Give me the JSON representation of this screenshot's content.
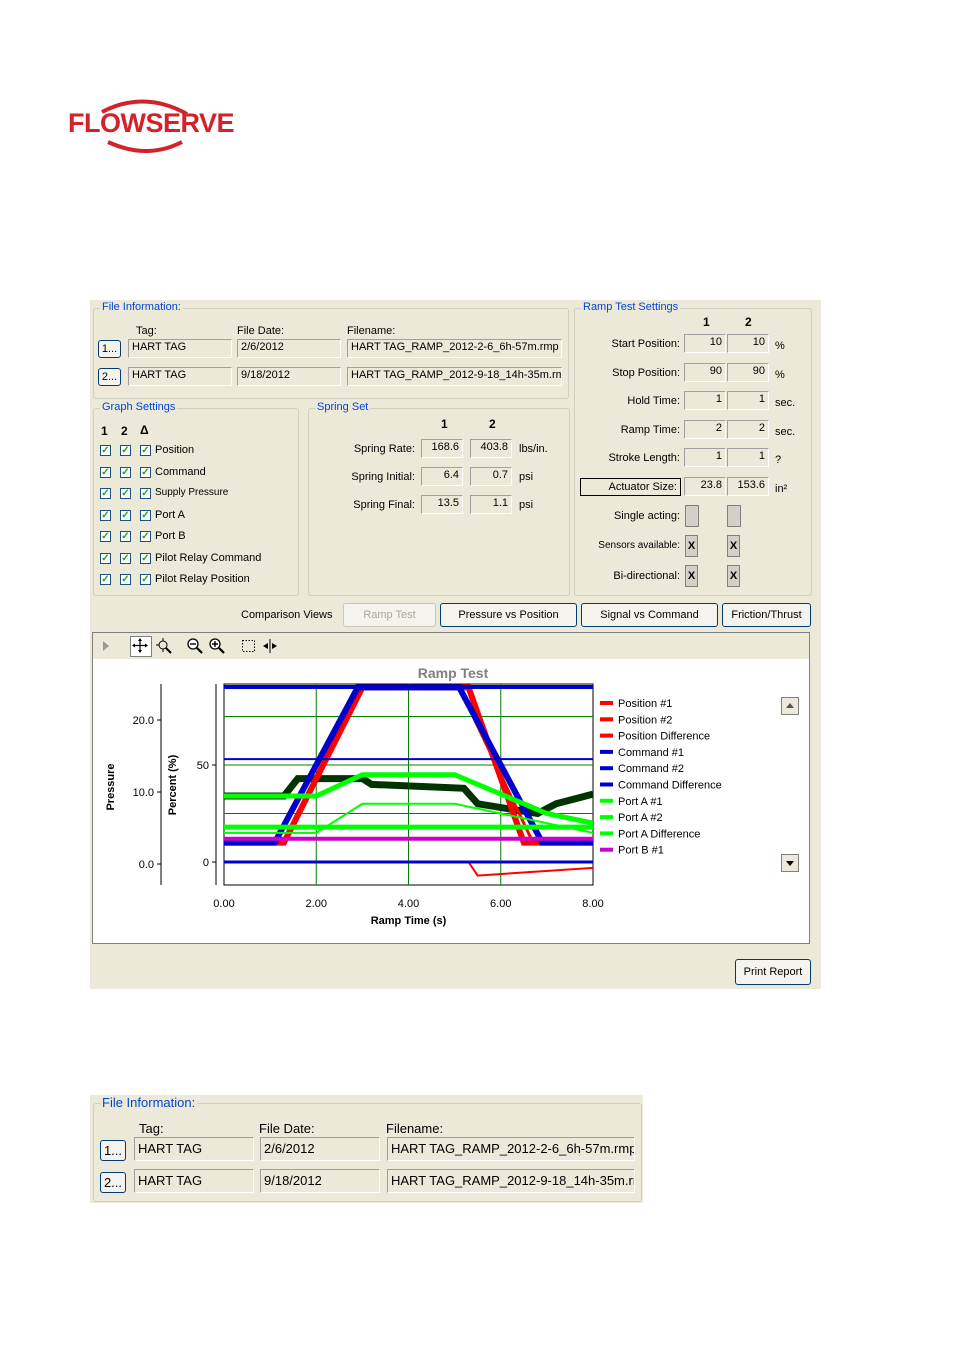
{
  "brand": {
    "logo_text": "FLOWSERVE"
  },
  "file_info": {
    "title": "File Information:",
    "headers": {
      "tag": "Tag:",
      "file_date": "File Date:",
      "filename": "Filename:"
    },
    "rows": [
      {
        "button": "1...",
        "tag": "HART TAG",
        "date": "2/6/2012",
        "filename": "HART TAG_RAMP_2012-2-6_6h-57m.rmp"
      },
      {
        "button": "2...",
        "tag": "HART TAG",
        "date": "9/18/2012",
        "filename": "HART TAG_RAMP_2012-9-18_14h-35m.rm"
      }
    ]
  },
  "graph_settings": {
    "title": "Graph Settings",
    "col_headers": [
      "1",
      "2",
      "Δ"
    ],
    "items": [
      {
        "label": "Position",
        "checked": "✓"
      },
      {
        "label": "Command",
        "checked": "✓"
      },
      {
        "label": "Supply Pressure",
        "checked": "✓"
      },
      {
        "label": "Port A",
        "checked": "✓"
      },
      {
        "label": "Port B",
        "checked": "✓"
      },
      {
        "label": "Pilot Relay Command",
        "checked": "✓"
      },
      {
        "label": "Pilot Relay Position",
        "checked": "✓"
      }
    ]
  },
  "spring_set": {
    "title": "Spring Set",
    "col_headers": [
      "1",
      "2"
    ],
    "rows": [
      {
        "label": "Spring Rate:",
        "v1": "168.6",
        "v2": "403.8",
        "unit": "lbs/in."
      },
      {
        "label": "Spring Initial:",
        "v1": "6.4",
        "v2": "0.7",
        "unit": "psi"
      },
      {
        "label": "Spring Final:",
        "v1": "13.5",
        "v2": "1.1",
        "unit": "psi"
      }
    ]
  },
  "ramp_settings": {
    "title": "Ramp Test Settings",
    "col_headers": [
      "1",
      "2"
    ],
    "rows": [
      {
        "label": "Start Position:",
        "v1": "10",
        "v2": "10",
        "unit": "%"
      },
      {
        "label": "Stop Position:",
        "v1": "90",
        "v2": "90",
        "unit": "%"
      },
      {
        "label": "Hold Time:",
        "v1": "1",
        "v2": "1",
        "unit": "sec."
      },
      {
        "label": "Ramp Time:",
        "v1": "2",
        "v2": "2",
        "unit": "sec."
      },
      {
        "label": "Stroke Length:",
        "v1": "1",
        "v2": "1",
        "unit": "?"
      },
      {
        "label": "Actuator Size:",
        "v1": "23.8",
        "v2": "153.6",
        "unit": "in²"
      }
    ],
    "single_acting": {
      "label": "Single acting:",
      "v1": "",
      "v2": ""
    },
    "sensors": {
      "label": "Sensors available:",
      "v1": "X",
      "v2": "X"
    },
    "bidirectional": {
      "label": "Bi-directional:",
      "v1": "X",
      "v2": "X"
    }
  },
  "comparison": {
    "label": "Comparison Views",
    "buttons": [
      "Ramp Test",
      "Pressure vs Position",
      "Signal vs Command",
      "Friction/Thrust"
    ]
  },
  "print_button": "Print Report",
  "colors": {
    "pos1": "#ff0000",
    "cmd": "#0000cc",
    "portA": "#00ff00",
    "portB": "#cc00cc",
    "dkgreen": "#003300"
  },
  "chart_data": {
    "type": "line",
    "title": "Ramp Test",
    "xlabel": "Ramp Time (s)",
    "ylabel_left": "Pressure",
    "ylabel_right": "Percent (%)",
    "x_ticks": [
      "0.00",
      "2.00",
      "4.00",
      "6.00",
      "8.00"
    ],
    "pressure_ticks": [
      "0.0",
      "10.0",
      "20.0"
    ],
    "percent_ticks": [
      "0",
      "50"
    ],
    "xlim": [
      0,
      8
    ],
    "series": [
      {
        "name": "Position #1",
        "color": "#ff0000",
        "x": [
          0,
          1.3,
          3,
          5.3,
          6.5,
          8
        ],
        "y": [
          10,
          10,
          90,
          90,
          10,
          10
        ]
      },
      {
        "name": "Position #2",
        "color": "#ff0000",
        "x": [
          0,
          1.3,
          3,
          5.1,
          6.7,
          8
        ],
        "y": [
          10,
          10,
          90,
          90,
          10,
          10
        ]
      },
      {
        "name": "Position Difference",
        "color": "#ff0000",
        "x": [
          0,
          5.3,
          5.5,
          8
        ],
        "y": [
          0,
          0,
          -7,
          -3
        ]
      },
      {
        "name": "Command #1",
        "color": "#0000cc",
        "x": [
          0,
          1.1,
          2.9,
          5.1,
          6.9,
          8
        ],
        "y": [
          10,
          10,
          90,
          90,
          10,
          10
        ]
      },
      {
        "name": "Command #2",
        "color": "#0000cc",
        "x": [
          0,
          8
        ],
        "y": [
          53,
          53
        ]
      },
      {
        "name": "Command Difference",
        "color": "#0000cc",
        "x": [
          0,
          8
        ],
        "y": [
          0,
          0
        ]
      },
      {
        "name": "Port A #1",
        "color": "#00ff00",
        "x": [
          0,
          2,
          3,
          5,
          6,
          7,
          8
        ],
        "y": [
          34,
          34,
          45,
          45,
          35,
          25,
          20
        ]
      },
      {
        "name": "Port A #2",
        "color": "#00ff00",
        "x": [
          0,
          2,
          3,
          5,
          6,
          8
        ],
        "y": [
          15,
          15,
          30,
          30,
          25,
          15
        ]
      },
      {
        "name": "Port A Difference",
        "color": "#00ff00",
        "x": [
          0,
          8
        ],
        "y": [
          18,
          18
        ]
      },
      {
        "name": "Port B #1",
        "color": "#cc00cc",
        "x": [
          0,
          8
        ],
        "y": [
          12,
          12
        ]
      }
    ]
  }
}
